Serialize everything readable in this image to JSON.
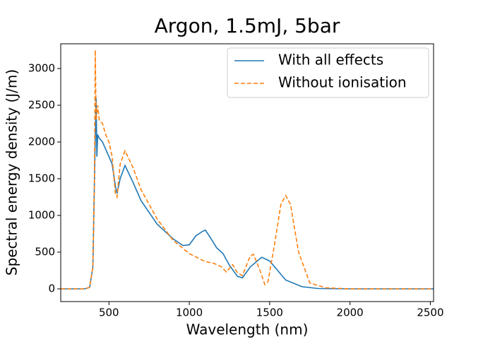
{
  "chart_data": {
    "type": "line",
    "title": "Argon, 1.5mJ, 5bar",
    "xlabel": "Wavelength (nm)",
    "ylabel": "Spectral energy density (J/m)",
    "xlim": [
      200,
      2520
    ],
    "ylim": [
      -173,
      3337
    ],
    "xticks": [
      500,
      1000,
      1500,
      2000,
      2500
    ],
    "yticks": [
      0,
      500,
      1000,
      1500,
      2000,
      2500,
      3000
    ],
    "legend": "upper right",
    "series": [
      {
        "name": "With all effects",
        "color": "#1f77b4",
        "dashed": false,
        "x": [
          200,
          350,
          380,
          400,
          410,
          420,
          425,
          430,
          440,
          460,
          480,
          500,
          520,
          540,
          550,
          570,
          600,
          650,
          700,
          800,
          900,
          960,
          1000,
          1040,
          1080,
          1100,
          1130,
          1170,
          1210,
          1250,
          1300,
          1330,
          1380,
          1450,
          1500,
          1550,
          1600,
          1700,
          1800,
          2000,
          2520
        ],
        "values": [
          0,
          0,
          20,
          300,
          1500,
          2600,
          1800,
          2100,
          2050,
          2000,
          1900,
          1800,
          1700,
          1400,
          1300,
          1500,
          1680,
          1450,
          1200,
          880,
          680,
          590,
          600,
          720,
          780,
          800,
          700,
          560,
          480,
          320,
          170,
          150,
          300,
          430,
          380,
          250,
          120,
          30,
          5,
          0,
          0
        ]
      },
      {
        "name": "Without ionisation",
        "color": "#ff7f0e",
        "dashed": true,
        "x": [
          200,
          350,
          380,
          400,
          410,
          415,
          420,
          430,
          440,
          460,
          480,
          500,
          520,
          540,
          550,
          570,
          600,
          650,
          700,
          800,
          900,
          1000,
          1100,
          1150,
          1200,
          1230,
          1270,
          1300,
          1330,
          1380,
          1400,
          1440,
          1470,
          1490,
          1530,
          1570,
          1600,
          1630,
          1680,
          1750,
          1850,
          2000,
          2520
        ],
        "values": [
          0,
          0,
          20,
          300,
          1500,
          3250,
          2300,
          2500,
          2300,
          2250,
          2100,
          2000,
          1800,
          1300,
          1250,
          1700,
          1880,
          1650,
          1350,
          950,
          660,
          480,
          370,
          350,
          300,
          230,
          330,
          220,
          180,
          450,
          470,
          250,
          60,
          100,
          600,
          1150,
          1270,
          1150,
          500,
          80,
          15,
          0,
          0
        ]
      }
    ]
  }
}
